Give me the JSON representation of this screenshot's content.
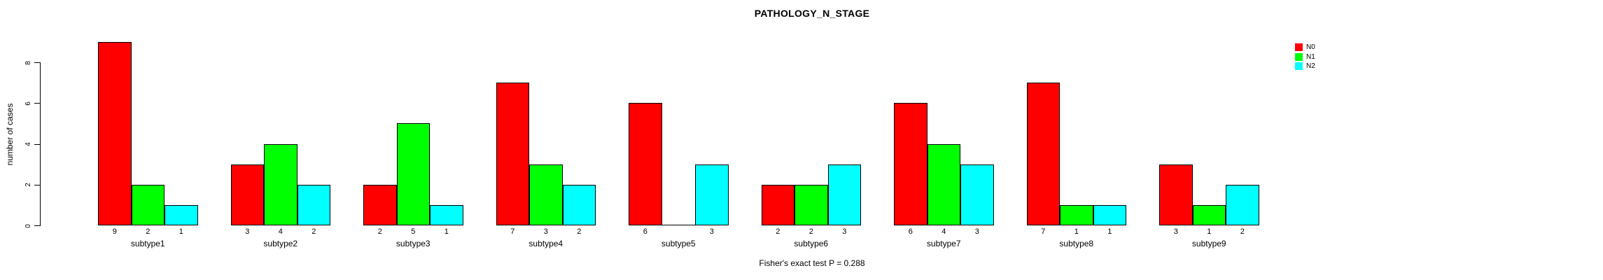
{
  "title": "PATHOLOGY_N_STAGE",
  "caption": "Fisher's exact test P = 0.288",
  "colors": {
    "n0": "#FF0000",
    "n1": "#00FF00",
    "n2": "#00FFFF",
    "axis": "#000000",
    "background": "#FFFFFF"
  },
  "legend": {
    "position": "top-right",
    "items": [
      {
        "label": "N0",
        "color": "#FF0000"
      },
      {
        "label": "N1",
        "color": "#00FF00"
      },
      {
        "label": "N2",
        "color": "#00FFFF"
      }
    ]
  },
  "chart_data": {
    "type": "bar",
    "title": "PATHOLOGY_N_STAGE",
    "xlabel": "",
    "ylabel": "number of cases",
    "annotation": "Fisher's exact test P = 0.288",
    "grid": false,
    "legend_position": "top-right",
    "yticks": [
      0,
      2,
      4,
      6,
      8
    ],
    "ylim": [
      0,
      9
    ],
    "categories": [
      "subtype1",
      "subtype2",
      "subtype3",
      "subtype4",
      "subtype5",
      "subtype6",
      "subtype7",
      "subtype8",
      "subtype9"
    ],
    "series": [
      {
        "name": "N0",
        "color": "#FF0000",
        "values": [
          9,
          3,
          2,
          7,
          6,
          2,
          6,
          7,
          3
        ]
      },
      {
        "name": "N1",
        "color": "#00FF00",
        "values": [
          2,
          4,
          5,
          3,
          0,
          2,
          4,
          1,
          1
        ]
      },
      {
        "name": "N2",
        "color": "#00FFFF",
        "values": [
          1,
          2,
          1,
          2,
          3,
          3,
          3,
          1,
          2
        ]
      }
    ],
    "value_labels": [
      [
        "9",
        "2",
        "1"
      ],
      [
        "3",
        "4",
        "2"
      ],
      [
        "2",
        "5",
        "1"
      ],
      [
        "7",
        "3",
        "2"
      ],
      [
        "6",
        "",
        "3"
      ],
      [
        "2",
        "2",
        "3"
      ],
      [
        "6",
        "4",
        "3"
      ],
      [
        "7",
        "1",
        "1"
      ],
      [
        "3",
        "1",
        "2"
      ]
    ]
  }
}
